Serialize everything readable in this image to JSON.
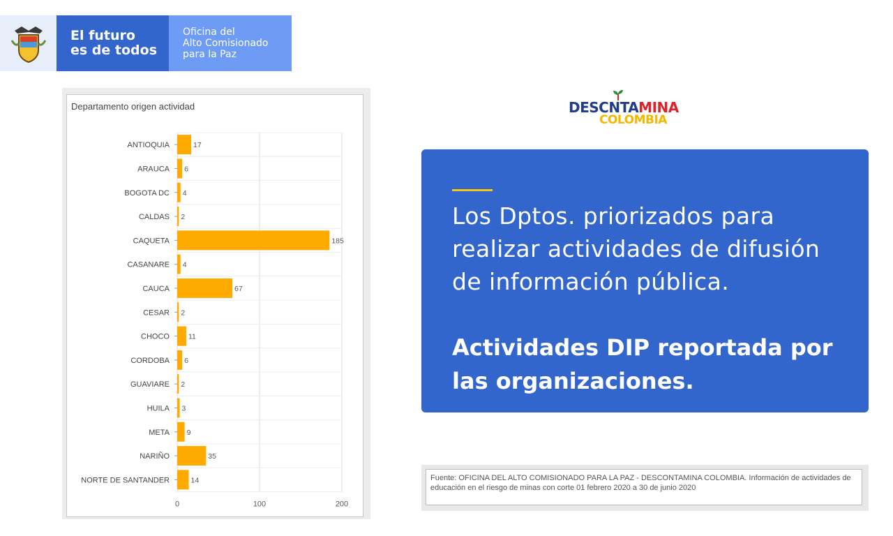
{
  "header": {
    "slogan_line1": "El futuro",
    "slogan_line2": "es de todos",
    "office_line1": "Oficina del",
    "office_line2": "Alto Comisionado",
    "office_line3": "para la Paz",
    "colors": {
      "slogan_bg": "#3366cc",
      "office_bg": "#6e9cf5"
    }
  },
  "logo": {
    "line1_part1": "DESC",
    "line1_part2": "NTA",
    "line1_part3": "MINA",
    "line2": "COLOMBIA",
    "colors": {
      "blue": "#1f3c88",
      "red": "#d9252a",
      "yellow": "#f5b800"
    }
  },
  "message": {
    "paragraph1": "Los Dptos. priorizados para realizar actividades de difusión de información pública.",
    "paragraph2": "Actividades DIP reportada por las organizaciones."
  },
  "source_note": "Fuente: OFICINA DEL ALTO COMISIONADO PARA LA PAZ - DESCONTAMINA COLOMBIA.  Información de actividades de educación en el riesgo de minas con corte 01 febrero 2020 a 30 de junio 2020",
  "chart_data": {
    "type": "bar",
    "orientation": "horizontal",
    "title": "Departamento origen actividad",
    "categories": [
      "ANTIOQUIA",
      "ARAUCA",
      "BOGOTA DC",
      "CALDAS",
      "CAQUETA",
      "CASANARE",
      "CAUCA",
      "CESAR",
      "CHOCO",
      "CORDOBA",
      "GUAVIARE",
      "HUILA",
      "META",
      "NARIÑO",
      "NORTE DE SANTANDER"
    ],
    "values": [
      17,
      6,
      4,
      2,
      185,
      4,
      67,
      2,
      11,
      6,
      2,
      3,
      9,
      35,
      14
    ],
    "xlim": [
      0,
      200
    ],
    "xticks": [
      0,
      100,
      200
    ],
    "grid": true,
    "bar_color": "#ffaa00"
  }
}
